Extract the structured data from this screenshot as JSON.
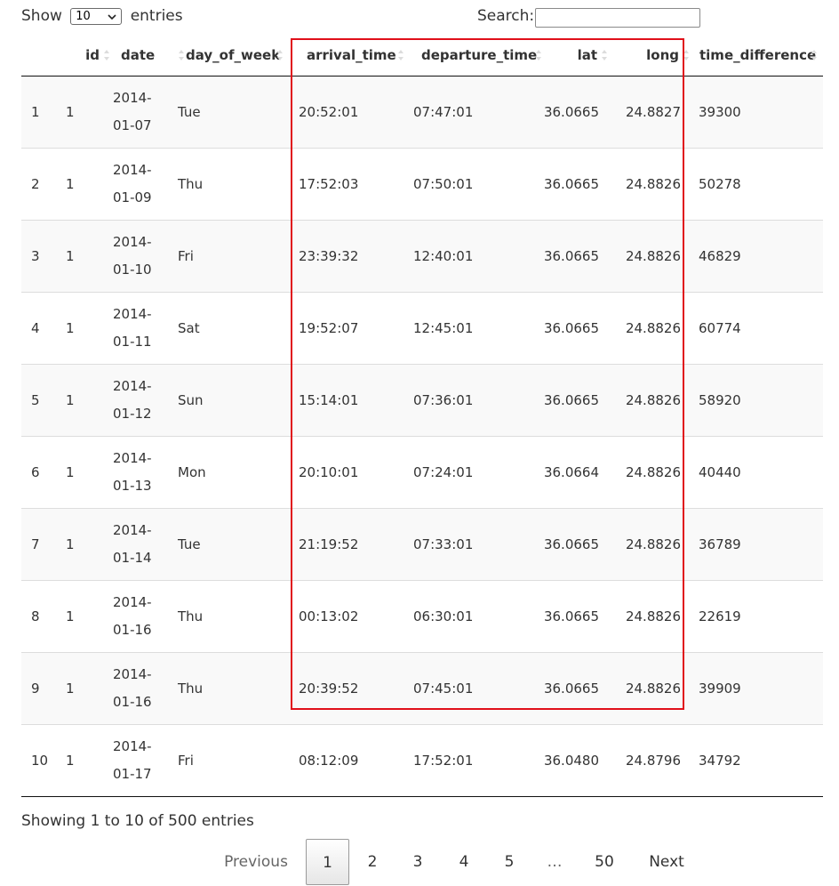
{
  "controls": {
    "show_label": "Show",
    "page_length": "10",
    "entries_label": "entries",
    "search_label": "Search:",
    "search_value": ""
  },
  "columns": [
    "",
    "id",
    "date",
    "day_of_week",
    "arrival_time",
    "departure_time",
    "lat",
    "long",
    "time_difference"
  ],
  "rows": [
    {
      "index": "1",
      "id": "1",
      "date_year": "2014-",
      "date_md": "01-07",
      "day": "Tue",
      "arrival": "20:52:01",
      "departure": "07:47:01",
      "lat": "36.0665",
      "long": "24.8827",
      "diff": "39300"
    },
    {
      "index": "2",
      "id": "1",
      "date_year": "2014-",
      "date_md": "01-09",
      "day": "Thu",
      "arrival": "17:52:03",
      "departure": "07:50:01",
      "lat": "36.0665",
      "long": "24.8826",
      "diff": "50278"
    },
    {
      "index": "3",
      "id": "1",
      "date_year": "2014-",
      "date_md": "01-10",
      "day": "Fri",
      "arrival": "23:39:32",
      "departure": "12:40:01",
      "lat": "36.0665",
      "long": "24.8826",
      "diff": "46829"
    },
    {
      "index": "4",
      "id": "1",
      "date_year": "2014-",
      "date_md": "01-11",
      "day": "Sat",
      "arrival": "19:52:07",
      "departure": "12:45:01",
      "lat": "36.0665",
      "long": "24.8826",
      "diff": "60774"
    },
    {
      "index": "5",
      "id": "1",
      "date_year": "2014-",
      "date_md": "01-12",
      "day": "Sun",
      "arrival": "15:14:01",
      "departure": "07:36:01",
      "lat": "36.0665",
      "long": "24.8826",
      "diff": "58920"
    },
    {
      "index": "6",
      "id": "1",
      "date_year": "2014-",
      "date_md": "01-13",
      "day": "Mon",
      "arrival": "20:10:01",
      "departure": "07:24:01",
      "lat": "36.0664",
      "long": "24.8826",
      "diff": "40440"
    },
    {
      "index": "7",
      "id": "1",
      "date_year": "2014-",
      "date_md": "01-14",
      "day": "Tue",
      "arrival": "21:19:52",
      "departure": "07:33:01",
      "lat": "36.0665",
      "long": "24.8826",
      "diff": "36789"
    },
    {
      "index": "8",
      "id": "1",
      "date_year": "2014-",
      "date_md": "01-16",
      "day": "Thu",
      "arrival": "00:13:02",
      "departure": "06:30:01",
      "lat": "36.0665",
      "long": "24.8826",
      "diff": "22619"
    },
    {
      "index": "9",
      "id": "1",
      "date_year": "2014-",
      "date_md": "01-16",
      "day": "Thu",
      "arrival": "20:39:52",
      "departure": "07:45:01",
      "lat": "36.0665",
      "long": "24.8826",
      "diff": "39909"
    },
    {
      "index": "10",
      "id": "1",
      "date_year": "2014-",
      "date_md": "01-17",
      "day": "Fri",
      "arrival": "08:12:09",
      "departure": "17:52:01",
      "lat": "36.0480",
      "long": "24.8796",
      "diff": "34792"
    }
  ],
  "info": "Showing 1 to 10 of 500 entries",
  "pagination": {
    "previous": "Previous",
    "pages": [
      "1",
      "2",
      "3",
      "4",
      "5",
      "…",
      "50"
    ],
    "current": "1",
    "next": "Next"
  },
  "icons": {
    "sort": "sort-both-icon",
    "select": "chevron-down-icon"
  },
  "colors": {
    "highlight": "#e0101a",
    "stripe": "#f9f9f9",
    "header_border": "#111111"
  }
}
